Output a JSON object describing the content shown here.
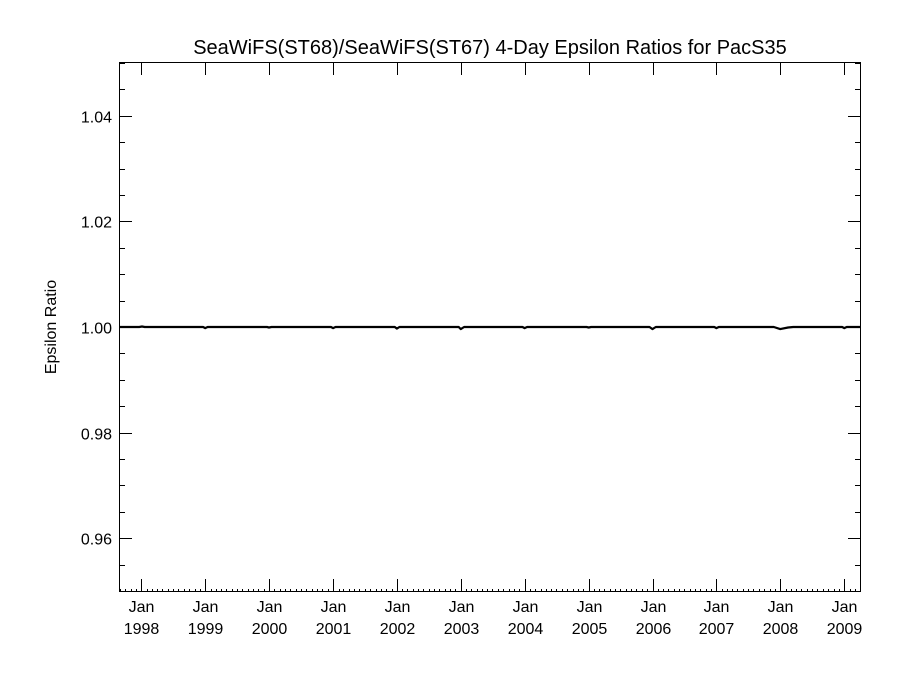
{
  "chart_data": {
    "type": "line",
    "title": "SeaWiFS(ST68)/SeaWiFS(ST67) 4-Day Epsilon Ratios for PacS35",
    "xlabel": "",
    "ylabel": "Epsilon Ratio",
    "ylim": [
      0.95,
      1.05
    ],
    "xlim": [
      "1997-09-01",
      "2009-04-01"
    ],
    "y_ticks": [
      "0.96",
      "0.98",
      "1.00",
      "1.02",
      "1.04"
    ],
    "y_tick_values": [
      0.96,
      0.98,
      1.0,
      1.02,
      1.04
    ],
    "x_ticks": [
      {
        "date": "1998-01-01",
        "label_top": "Jan",
        "label_bottom": "1998"
      },
      {
        "date": "1999-01-01",
        "label_top": "Jan",
        "label_bottom": "1999"
      },
      {
        "date": "2000-01-01",
        "label_top": "Jan",
        "label_bottom": "2000"
      },
      {
        "date": "2001-01-01",
        "label_top": "Jan",
        "label_bottom": "2001"
      },
      {
        "date": "2002-01-01",
        "label_top": "Jan",
        "label_bottom": "2002"
      },
      {
        "date": "2003-01-01",
        "label_top": "Jan",
        "label_bottom": "2003"
      },
      {
        "date": "2004-01-01",
        "label_top": "Jan",
        "label_bottom": "2004"
      },
      {
        "date": "2005-01-01",
        "label_top": "Jan",
        "label_bottom": "2005"
      },
      {
        "date": "2006-01-01",
        "label_top": "Jan",
        "label_bottom": "2006"
      },
      {
        "date": "2007-01-01",
        "label_top": "Jan",
        "label_bottom": "2007"
      },
      {
        "date": "2008-01-01",
        "label_top": "Jan",
        "label_bottom": "2008"
      },
      {
        "date": "2009-01-01",
        "label_top": "Jan",
        "label_bottom": "2009"
      }
    ],
    "grid": false,
    "series": [
      {
        "color": "#000000",
        "points": [
          [
            "1997-09-01",
            1.0
          ],
          [
            "1997-12-20",
            1.0
          ],
          [
            "1998-01-05",
            1.0001
          ],
          [
            "1998-01-20",
            1.0
          ],
          [
            "1998-12-20",
            1.0
          ],
          [
            "1999-01-01",
            0.9998
          ],
          [
            "1999-01-15",
            1.0
          ],
          [
            "1999-12-20",
            1.0
          ],
          [
            "2000-01-01",
            0.9999
          ],
          [
            "2000-01-15",
            1.0
          ],
          [
            "2000-12-20",
            1.0
          ],
          [
            "2001-01-01",
            0.9998
          ],
          [
            "2001-01-15",
            1.0
          ],
          [
            "2001-12-20",
            1.0
          ],
          [
            "2002-01-01",
            0.9997
          ],
          [
            "2002-01-15",
            1.0
          ],
          [
            "2002-12-20",
            1.0
          ],
          [
            "2003-01-01",
            0.9996
          ],
          [
            "2003-01-20",
            1.0
          ],
          [
            "2003-12-20",
            1.0
          ],
          [
            "2004-01-01",
            0.9998
          ],
          [
            "2004-01-15",
            1.0
          ],
          [
            "2004-12-20",
            1.0
          ],
          [
            "2005-01-01",
            0.9999
          ],
          [
            "2005-01-15",
            1.0
          ],
          [
            "2005-12-15",
            1.0
          ],
          [
            "2006-01-01",
            0.9996
          ],
          [
            "2006-01-20",
            1.0
          ],
          [
            "2006-12-20",
            1.0
          ],
          [
            "2007-01-01",
            0.9998
          ],
          [
            "2007-01-15",
            1.0
          ],
          [
            "2007-11-25",
            1.0
          ],
          [
            "2008-01-01",
            0.9996
          ],
          [
            "2008-02-15",
            0.9999
          ],
          [
            "2008-03-15",
            1.0
          ],
          [
            "2008-12-20",
            1.0
          ],
          [
            "2009-01-01",
            0.9998
          ],
          [
            "2009-01-15",
            1.0
          ],
          [
            "2009-04-01",
            1.0
          ]
        ]
      }
    ]
  }
}
